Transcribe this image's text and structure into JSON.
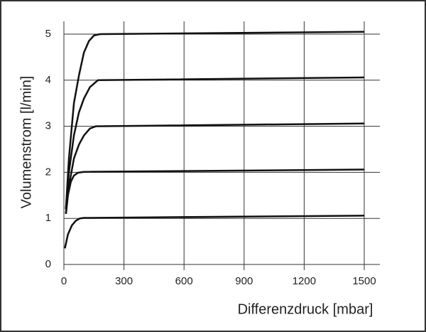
{
  "chart_data": {
    "type": "line",
    "xlabel": "Differenzdruck [mbar]",
    "ylabel": "Volumenstrom [l/min]",
    "xlim": [
      0,
      1500
    ],
    "ylim": [
      0,
      5
    ],
    "xticks": [
      0,
      300,
      600,
      900,
      1200,
      1500
    ],
    "yticks": [
      0,
      1,
      2,
      3,
      4,
      5
    ],
    "grid": true,
    "series": [
      {
        "color": "#111111",
        "x": [
          5,
          20,
          40,
          60,
          80,
          100,
          1500
        ],
        "values": [
          0.35,
          0.65,
          0.85,
          0.95,
          1.0,
          1.01,
          1.06
        ]
      },
      {
        "color": "#111111",
        "x": [
          10,
          20,
          35,
          50,
          70,
          100,
          1500
        ],
        "values": [
          1.1,
          1.5,
          1.8,
          1.93,
          1.99,
          2.01,
          2.06
        ]
      },
      {
        "color": "#111111",
        "x": [
          10,
          25,
          50,
          75,
          100,
          130,
          160,
          1500
        ],
        "values": [
          1.1,
          1.7,
          2.3,
          2.6,
          2.8,
          2.95,
          3.0,
          3.06
        ]
      },
      {
        "color": "#111111",
        "x": [
          10,
          25,
          50,
          75,
          100,
          130,
          170,
          1500
        ],
        "values": [
          1.2,
          2.0,
          2.8,
          3.3,
          3.6,
          3.85,
          4.0,
          4.06
        ]
      },
      {
        "color": "#111111",
        "x": [
          10,
          25,
          50,
          75,
          100,
          125,
          150,
          180,
          1500
        ],
        "values": [
          1.2,
          2.3,
          3.5,
          4.1,
          4.6,
          4.85,
          4.97,
          5.0,
          5.05
        ]
      }
    ]
  }
}
